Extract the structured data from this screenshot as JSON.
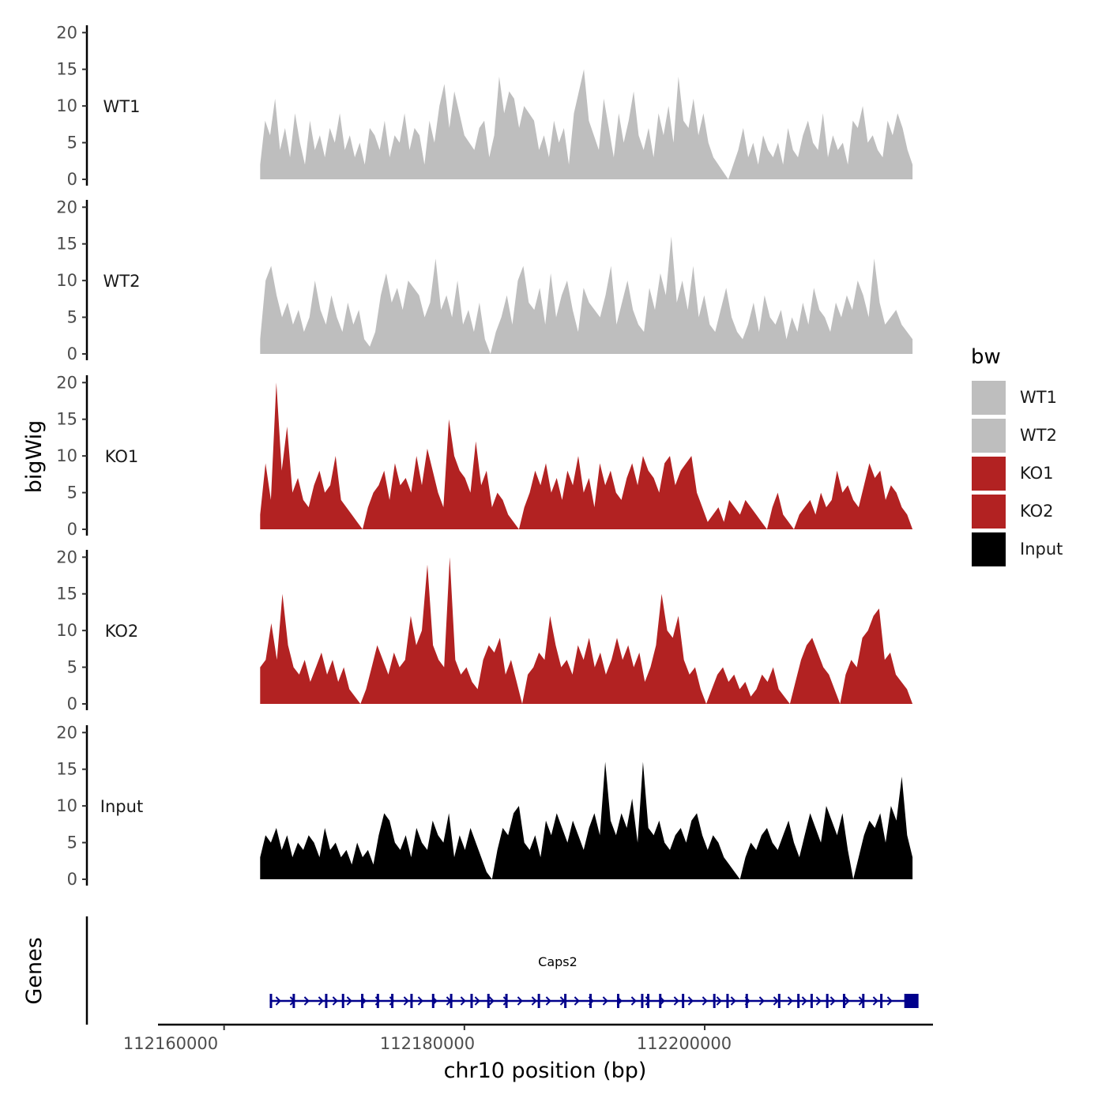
{
  "chart_data": {
    "type": "area",
    "ylabel": "bigWig",
    "xlabel": "chr10 position (bp)",
    "ylim": [
      0,
      21
    ],
    "y_ticks": [
      "0",
      "5",
      "10",
      "15",
      "20"
    ],
    "x_range": [
      112154500,
      112219000
    ],
    "x_ticks": [
      {
        "value": 112160000,
        "label": "112160000"
      },
      {
        "value": 112180000,
        "label": "112180000"
      },
      {
        "value": 112200000,
        "label": "112200000"
      }
    ],
    "data_range": [
      112163000,
      112217300
    ],
    "legend": {
      "title": "bw",
      "entries": [
        {
          "label": "WT1",
          "color": "#BEBEBE"
        },
        {
          "label": "WT2",
          "color": "#BEBEBE"
        },
        {
          "label": "KO1",
          "color": "#B22222"
        },
        {
          "label": "KO2",
          "color": "#B22222"
        },
        {
          "label": "Input",
          "color": "#000000"
        }
      ]
    },
    "series": [
      {
        "name": "WT1",
        "color": "#BEBEBE",
        "values": [
          2,
          8,
          6,
          11,
          4,
          7,
          3,
          9,
          5,
          2,
          8,
          4,
          6,
          3,
          7,
          5,
          9,
          4,
          6,
          3,
          5,
          2,
          7,
          6,
          4,
          8,
          3,
          6,
          5,
          9,
          4,
          7,
          6,
          2,
          8,
          5,
          10,
          13,
          7,
          12,
          9,
          6,
          5,
          4,
          7,
          8,
          3,
          6,
          14,
          9,
          12,
          11,
          7,
          10,
          9,
          8,
          4,
          6,
          3,
          8,
          5,
          7,
          2,
          9,
          12,
          15,
          8,
          6,
          4,
          11,
          7,
          3,
          9,
          5,
          8,
          12,
          6,
          4,
          7,
          3,
          9,
          6,
          10,
          5,
          14,
          8,
          7,
          11,
          6,
          9,
          5,
          3,
          2,
          1,
          0,
          2,
          4,
          7,
          3,
          5,
          2,
          6,
          4,
          3,
          5,
          2,
          7,
          4,
          3,
          6,
          8,
          5,
          4,
          9,
          3,
          6,
          4,
          5,
          2,
          8,
          7,
          10,
          5,
          6,
          4,
          3,
          8,
          6,
          9,
          7,
          4,
          2
        ]
      },
      {
        "name": "WT2",
        "color": "#BEBEBE",
        "values": [
          2,
          10,
          12,
          8,
          5,
          7,
          4,
          6,
          3,
          5,
          10,
          6,
          4,
          8,
          5,
          3,
          7,
          4,
          6,
          2,
          1,
          3,
          8,
          11,
          7,
          9,
          6,
          10,
          9,
          8,
          5,
          7,
          13,
          6,
          8,
          5,
          10,
          4,
          6,
          3,
          7,
          2,
          0,
          3,
          5,
          8,
          4,
          10,
          12,
          7,
          6,
          9,
          4,
          11,
          5,
          8,
          10,
          6,
          3,
          9,
          7,
          6,
          5,
          8,
          12,
          4,
          7,
          10,
          6,
          4,
          3,
          9,
          6,
          11,
          8,
          16,
          7,
          10,
          6,
          12,
          5,
          8,
          4,
          3,
          6,
          9,
          5,
          3,
          2,
          4,
          7,
          3,
          8,
          5,
          4,
          6,
          2,
          5,
          3,
          7,
          4,
          9,
          6,
          5,
          3,
          7,
          5,
          8,
          6,
          10,
          8,
          5,
          13,
          7,
          4,
          5,
          6,
          4,
          3,
          2
        ]
      },
      {
        "name": "KO1",
        "color": "#B22222",
        "values": [
          2,
          9,
          4,
          20,
          8,
          14,
          5,
          7,
          4,
          3,
          6,
          8,
          5,
          6,
          10,
          4,
          3,
          2,
          1,
          0,
          3,
          5,
          6,
          8,
          4,
          9,
          6,
          7,
          5,
          10,
          6,
          11,
          8,
          5,
          3,
          15,
          10,
          8,
          7,
          5,
          12,
          6,
          8,
          3,
          5,
          4,
          2,
          1,
          0,
          3,
          5,
          8,
          6,
          9,
          5,
          7,
          4,
          8,
          6,
          10,
          5,
          7,
          3,
          9,
          6,
          8,
          5,
          4,
          7,
          9,
          6,
          10,
          8,
          7,
          5,
          9,
          10,
          6,
          8,
          9,
          10,
          5,
          3,
          1,
          2,
          3,
          1,
          4,
          3,
          2,
          4,
          3,
          2,
          1,
          0,
          3,
          5,
          2,
          1,
          0,
          2,
          3,
          4,
          2,
          5,
          3,
          4,
          8,
          5,
          6,
          4,
          3,
          6,
          9,
          7,
          8,
          4,
          6,
          5,
          3,
          2,
          0
        ]
      },
      {
        "name": "KO2",
        "color": "#B22222",
        "values": [
          5,
          6,
          11,
          6,
          15,
          8,
          5,
          4,
          6,
          3,
          5,
          7,
          4,
          6,
          3,
          5,
          2,
          1,
          0,
          2,
          5,
          8,
          6,
          4,
          7,
          5,
          6,
          12,
          8,
          10,
          19,
          8,
          6,
          5,
          20,
          6,
          4,
          5,
          3,
          2,
          6,
          8,
          7,
          9,
          4,
          6,
          3,
          0,
          4,
          5,
          7,
          6,
          12,
          8,
          5,
          6,
          4,
          8,
          6,
          9,
          5,
          7,
          4,
          6,
          9,
          6,
          8,
          5,
          7,
          3,
          5,
          8,
          15,
          10,
          9,
          12,
          6,
          4,
          5,
          2,
          0,
          2,
          4,
          5,
          3,
          4,
          2,
          3,
          1,
          2,
          4,
          3,
          5,
          2,
          1,
          0,
          3,
          6,
          8,
          9,
          7,
          5,
          4,
          2,
          0,
          4,
          6,
          5,
          9,
          10,
          12,
          13,
          6,
          7,
          4,
          3,
          2,
          0
        ]
      },
      {
        "name": "Input",
        "color": "#000000",
        "values": [
          3,
          6,
          5,
          7,
          4,
          6,
          3,
          5,
          4,
          6,
          5,
          3,
          7,
          4,
          5,
          3,
          4,
          2,
          5,
          3,
          4,
          2,
          6,
          9,
          8,
          5,
          4,
          6,
          3,
          7,
          5,
          4,
          8,
          6,
          5,
          9,
          3,
          6,
          4,
          7,
          5,
          3,
          1,
          0,
          4,
          7,
          6,
          9,
          10,
          5,
          4,
          6,
          3,
          8,
          6,
          9,
          7,
          5,
          8,
          6,
          4,
          7,
          9,
          6,
          16,
          8,
          6,
          9,
          7,
          11,
          5,
          16,
          7,
          6,
          8,
          5,
          4,
          6,
          7,
          5,
          8,
          9,
          6,
          4,
          6,
          5,
          3,
          2,
          1,
          0,
          3,
          5,
          4,
          6,
          7,
          5,
          4,
          6,
          8,
          5,
          3,
          6,
          9,
          7,
          5,
          10,
          8,
          6,
          9,
          4,
          0,
          3,
          6,
          8,
          7,
          9,
          5,
          10,
          8,
          14,
          6,
          3
        ]
      }
    ],
    "genes": {
      "panel_label": "Genes",
      "name": "Caps2",
      "start": 112163800,
      "end": 112217400,
      "strand": "+",
      "color": "#00008B",
      "exons": [
        112163900,
        112165800,
        112168500,
        112169900,
        112171500,
        112172800,
        112174000,
        112175600,
        112177400,
        112178900,
        112180600,
        112182000,
        112183500,
        112186200,
        112188400,
        112190500,
        112192800,
        112194800,
        112195300,
        112196300,
        112198200,
        112200800,
        112201900,
        112203500,
        112206200,
        112207800,
        112208900,
        112210200,
        112211600,
        112213200,
        112214700
      ]
    }
  }
}
